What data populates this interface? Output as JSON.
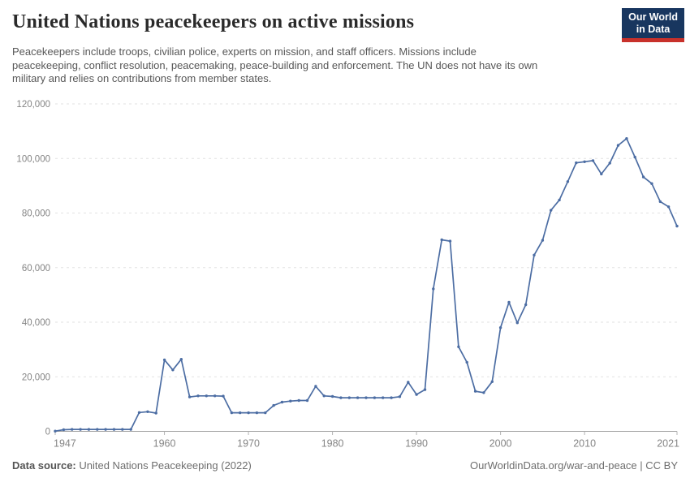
{
  "header": {
    "title": "United Nations peacekeepers on active missions",
    "subtitle_lines": [
      "Peacekeepers include troops, civilian police, experts on mission, and staff officers. Missions include",
      "peacekeeping, conflict resolution, peacemaking, peace-building and enforcement. The UN does not have its own",
      "military and relies on contributions from member states."
    ],
    "logo": {
      "line1": "Our World",
      "line2": "in Data",
      "bg_color": "#18365f",
      "stripe_color": "#c8312b"
    }
  },
  "chart_data": {
    "type": "line",
    "title": "United Nations peacekeepers on active missions",
    "xlabel": "",
    "ylabel": "",
    "legend": "none",
    "grid": "horizontal-dashed",
    "ylim": [
      0,
      120000
    ],
    "xlim": [
      1947,
      2021
    ],
    "series_color": "#4C6DA3",
    "x": [
      1947,
      1948,
      1949,
      1950,
      1951,
      1952,
      1953,
      1954,
      1955,
      1956,
      1957,
      1958,
      1959,
      1960,
      1961,
      1962,
      1963,
      1964,
      1965,
      1966,
      1967,
      1968,
      1969,
      1970,
      1971,
      1972,
      1973,
      1974,
      1975,
      1976,
      1977,
      1978,
      1979,
      1980,
      1981,
      1982,
      1983,
      1984,
      1985,
      1986,
      1987,
      1988,
      1989,
      1990,
      1991,
      1992,
      1993,
      1994,
      1995,
      1996,
      1997,
      1998,
      1999,
      2000,
      2001,
      2002,
      2003,
      2004,
      2005,
      2006,
      2007,
      2008,
      2009,
      2010,
      2011,
      2012,
      2013,
      2014,
      2015,
      2016,
      2017,
      2018,
      2019,
      2020,
      2021
    ],
    "values": [
      100,
      600,
      700,
      700,
      700,
      700,
      700,
      700,
      700,
      700,
      6900,
      7200,
      6700,
      26200,
      22500,
      26400,
      12600,
      13000,
      13000,
      13000,
      12900,
      6800,
      6800,
      6800,
      6800,
      6800,
      9500,
      10700,
      11100,
      11300,
      11300,
      16500,
      13000,
      12800,
      12300,
      12300,
      12300,
      12300,
      12300,
      12300,
      12300,
      12700,
      18000,
      13500,
      15300,
      52200,
      70200,
      69700,
      31000,
      25300,
      14700,
      14200,
      18200,
      38000,
      47300,
      39800,
      46400,
      64600,
      70000,
      81000,
      84800,
      91500,
      98400,
      98800,
      99200,
      94300,
      98300,
      104800,
      107300,
      100500,
      93200,
      90800,
      84200,
      82300,
      75200
    ],
    "yticks": [
      {
        "value": 0,
        "label": "0"
      },
      {
        "value": 20000,
        "label": "20,000"
      },
      {
        "value": 40000,
        "label": "40,000"
      },
      {
        "value": 60000,
        "label": "60,000"
      },
      {
        "value": 80000,
        "label": "80,000"
      },
      {
        "value": 100000,
        "label": "100,000"
      },
      {
        "value": 120000,
        "label": "120,000"
      }
    ],
    "xticks": [
      {
        "value": 1947,
        "label": "1947"
      },
      {
        "value": 1960,
        "label": "1960"
      },
      {
        "value": 1970,
        "label": "1970"
      },
      {
        "value": 1980,
        "label": "1980"
      },
      {
        "value": 1990,
        "label": "1990"
      },
      {
        "value": 2000,
        "label": "2000"
      },
      {
        "value": 2010,
        "label": "2010"
      },
      {
        "value": 2021,
        "label": "2021"
      }
    ]
  },
  "footer": {
    "source_label": "Data source:",
    "source_value": " United Nations Peacekeeping (2022)",
    "credit": "OurWorldinData.org/war-and-peace | CC BY"
  }
}
